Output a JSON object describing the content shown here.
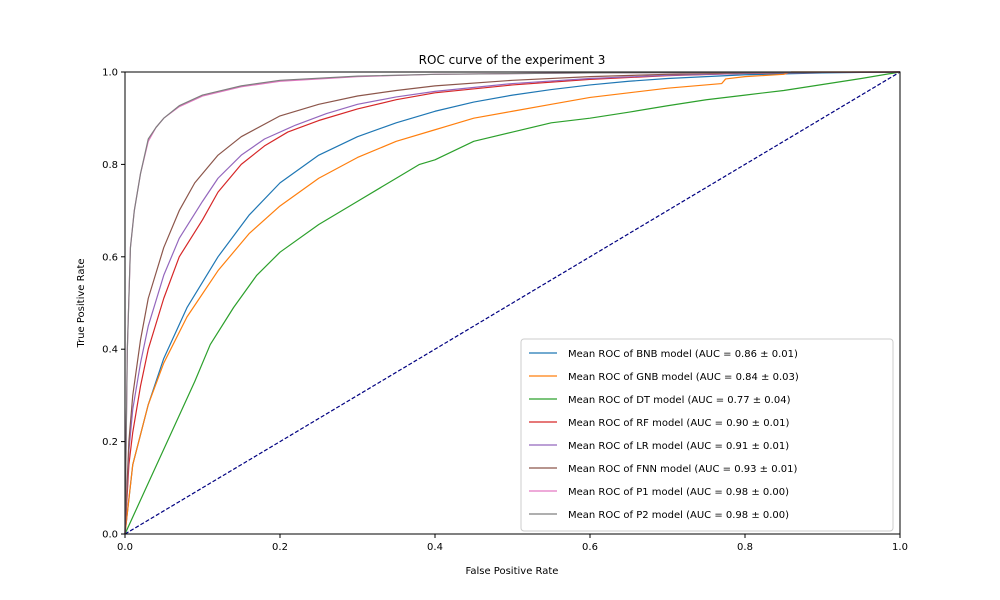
{
  "chart_data": {
    "type": "line",
    "title": "ROC curve of the experiment 3",
    "xlabel": "False Positive Rate",
    "ylabel": "True Positive Rate",
    "xlim": [
      0.0,
      1.0
    ],
    "ylim": [
      0.0,
      1.0
    ],
    "x_ticks": [
      "0.0",
      "0.2",
      "0.4",
      "0.6",
      "0.8",
      "1.0"
    ],
    "y_ticks": [
      "0.0",
      "0.2",
      "0.4",
      "0.6",
      "0.8",
      "1.0"
    ],
    "grid": false,
    "legend_position": "lower-right",
    "chance_line": {
      "x": [
        0,
        1
      ],
      "y": [
        0,
        1
      ],
      "color": "#000080",
      "style": "dashed"
    },
    "series": [
      {
        "name": "Mean ROC of BNB model (AUC = 0.86 ± 0.01)",
        "color": "#1f77b4",
        "x": [
          0,
          0.01,
          0.03,
          0.05,
          0.08,
          0.12,
          0.16,
          0.2,
          0.25,
          0.3,
          0.35,
          0.4,
          0.45,
          0.5,
          0.55,
          0.6,
          0.65,
          0.7,
          0.75,
          0.8,
          0.85,
          0.9,
          0.95,
          1.0
        ],
        "y": [
          0,
          0.15,
          0.28,
          0.38,
          0.49,
          0.6,
          0.69,
          0.76,
          0.82,
          0.86,
          0.89,
          0.915,
          0.935,
          0.95,
          0.962,
          0.972,
          0.98,
          0.986,
          0.99,
          0.994,
          0.996,
          0.998,
          0.999,
          1.0
        ]
      },
      {
        "name": "Mean ROC of GNB model (AUC = 0.84 ± 0.03)",
        "color": "#ff7f0e",
        "x": [
          0,
          0.01,
          0.03,
          0.05,
          0.08,
          0.12,
          0.16,
          0.2,
          0.25,
          0.3,
          0.35,
          0.4,
          0.45,
          0.5,
          0.55,
          0.6,
          0.65,
          0.7,
          0.77,
          0.775,
          0.8,
          0.85,
          0.86,
          0.9,
          1.0
        ],
        "y": [
          0,
          0.15,
          0.28,
          0.37,
          0.47,
          0.57,
          0.65,
          0.71,
          0.77,
          0.815,
          0.85,
          0.875,
          0.9,
          0.915,
          0.93,
          0.945,
          0.955,
          0.965,
          0.975,
          0.985,
          0.99,
          0.995,
          1.0,
          1.0,
          1.0
        ]
      },
      {
        "name": "Mean ROC of DT model (AUC = 0.77 ± 0.04)",
        "color": "#2ca02c",
        "x": [
          0,
          0.03,
          0.06,
          0.09,
          0.11,
          0.14,
          0.17,
          0.2,
          0.25,
          0.3,
          0.35,
          0.38,
          0.4,
          0.45,
          0.5,
          0.55,
          0.6,
          0.65,
          0.7,
          0.75,
          0.8,
          0.85,
          0.9,
          0.95,
          1.0
        ],
        "y": [
          0,
          0.11,
          0.22,
          0.33,
          0.41,
          0.49,
          0.56,
          0.61,
          0.67,
          0.72,
          0.77,
          0.8,
          0.81,
          0.85,
          0.87,
          0.89,
          0.9,
          0.913,
          0.927,
          0.94,
          0.95,
          0.96,
          0.973,
          0.986,
          1.0
        ]
      },
      {
        "name": "Mean ROC of RF model (AUC = 0.90 ± 0.01)",
        "color": "#d62728",
        "x": [
          0,
          0.005,
          0.01,
          0.02,
          0.03,
          0.05,
          0.07,
          0.1,
          0.12,
          0.15,
          0.18,
          0.21,
          0.25,
          0.3,
          0.35,
          0.4,
          0.5,
          0.6,
          0.7,
          0.8,
          0.9,
          1.0
        ],
        "y": [
          0,
          0.15,
          0.22,
          0.32,
          0.4,
          0.51,
          0.6,
          0.68,
          0.74,
          0.8,
          0.84,
          0.87,
          0.895,
          0.92,
          0.94,
          0.955,
          0.972,
          0.984,
          0.992,
          0.997,
          0.999,
          1.0
        ]
      },
      {
        "name": "Mean ROC of LR model (AUC = 0.91 ± 0.01)",
        "color": "#9467bd",
        "x": [
          0,
          0.005,
          0.01,
          0.02,
          0.03,
          0.05,
          0.07,
          0.1,
          0.12,
          0.15,
          0.18,
          0.22,
          0.26,
          0.3,
          0.35,
          0.4,
          0.5,
          0.6,
          0.7,
          0.8,
          0.9,
          1.0
        ],
        "y": [
          0,
          0.18,
          0.27,
          0.37,
          0.45,
          0.56,
          0.64,
          0.72,
          0.77,
          0.82,
          0.855,
          0.885,
          0.91,
          0.93,
          0.946,
          0.958,
          0.975,
          0.986,
          0.993,
          0.997,
          0.999,
          1.0
        ]
      },
      {
        "name": "Mean ROC of FNN model (AUC = 0.93 ± 0.01)",
        "color": "#8c564b",
        "x": [
          0,
          0.005,
          0.01,
          0.02,
          0.03,
          0.05,
          0.07,
          0.09,
          0.12,
          0.15,
          0.2,
          0.25,
          0.3,
          0.35,
          0.4,
          0.5,
          0.6,
          0.7,
          0.8,
          0.9,
          1.0
        ],
        "y": [
          0,
          0.2,
          0.3,
          0.42,
          0.51,
          0.62,
          0.7,
          0.76,
          0.82,
          0.86,
          0.905,
          0.93,
          0.948,
          0.96,
          0.97,
          0.982,
          0.99,
          0.995,
          0.998,
          0.999,
          1.0
        ]
      },
      {
        "name": "Mean ROC of P1 model (AUC = 0.98 ± 0.00)",
        "color": "#e377c2",
        "x": [
          0,
          0.003,
          0.007,
          0.012,
          0.02,
          0.03,
          0.04,
          0.05,
          0.07,
          0.1,
          0.15,
          0.2,
          0.3,
          0.4,
          0.6,
          0.8,
          1.0
        ],
        "y": [
          0,
          0.4,
          0.62,
          0.7,
          0.78,
          0.85,
          0.88,
          0.9,
          0.925,
          0.948,
          0.968,
          0.98,
          0.99,
          0.995,
          0.998,
          0.999,
          1.0
        ]
      },
      {
        "name": "Mean ROC of P2 model (AUC = 0.98 ± 0.00)",
        "color": "#7f7f7f",
        "x": [
          0,
          0.003,
          0.007,
          0.012,
          0.02,
          0.03,
          0.04,
          0.05,
          0.07,
          0.1,
          0.15,
          0.2,
          0.3,
          0.4,
          0.6,
          0.8,
          1.0
        ],
        "y": [
          0,
          0.4,
          0.62,
          0.7,
          0.78,
          0.855,
          0.88,
          0.9,
          0.927,
          0.95,
          0.97,
          0.982,
          0.991,
          0.995,
          0.998,
          0.999,
          1.0
        ]
      }
    ]
  }
}
